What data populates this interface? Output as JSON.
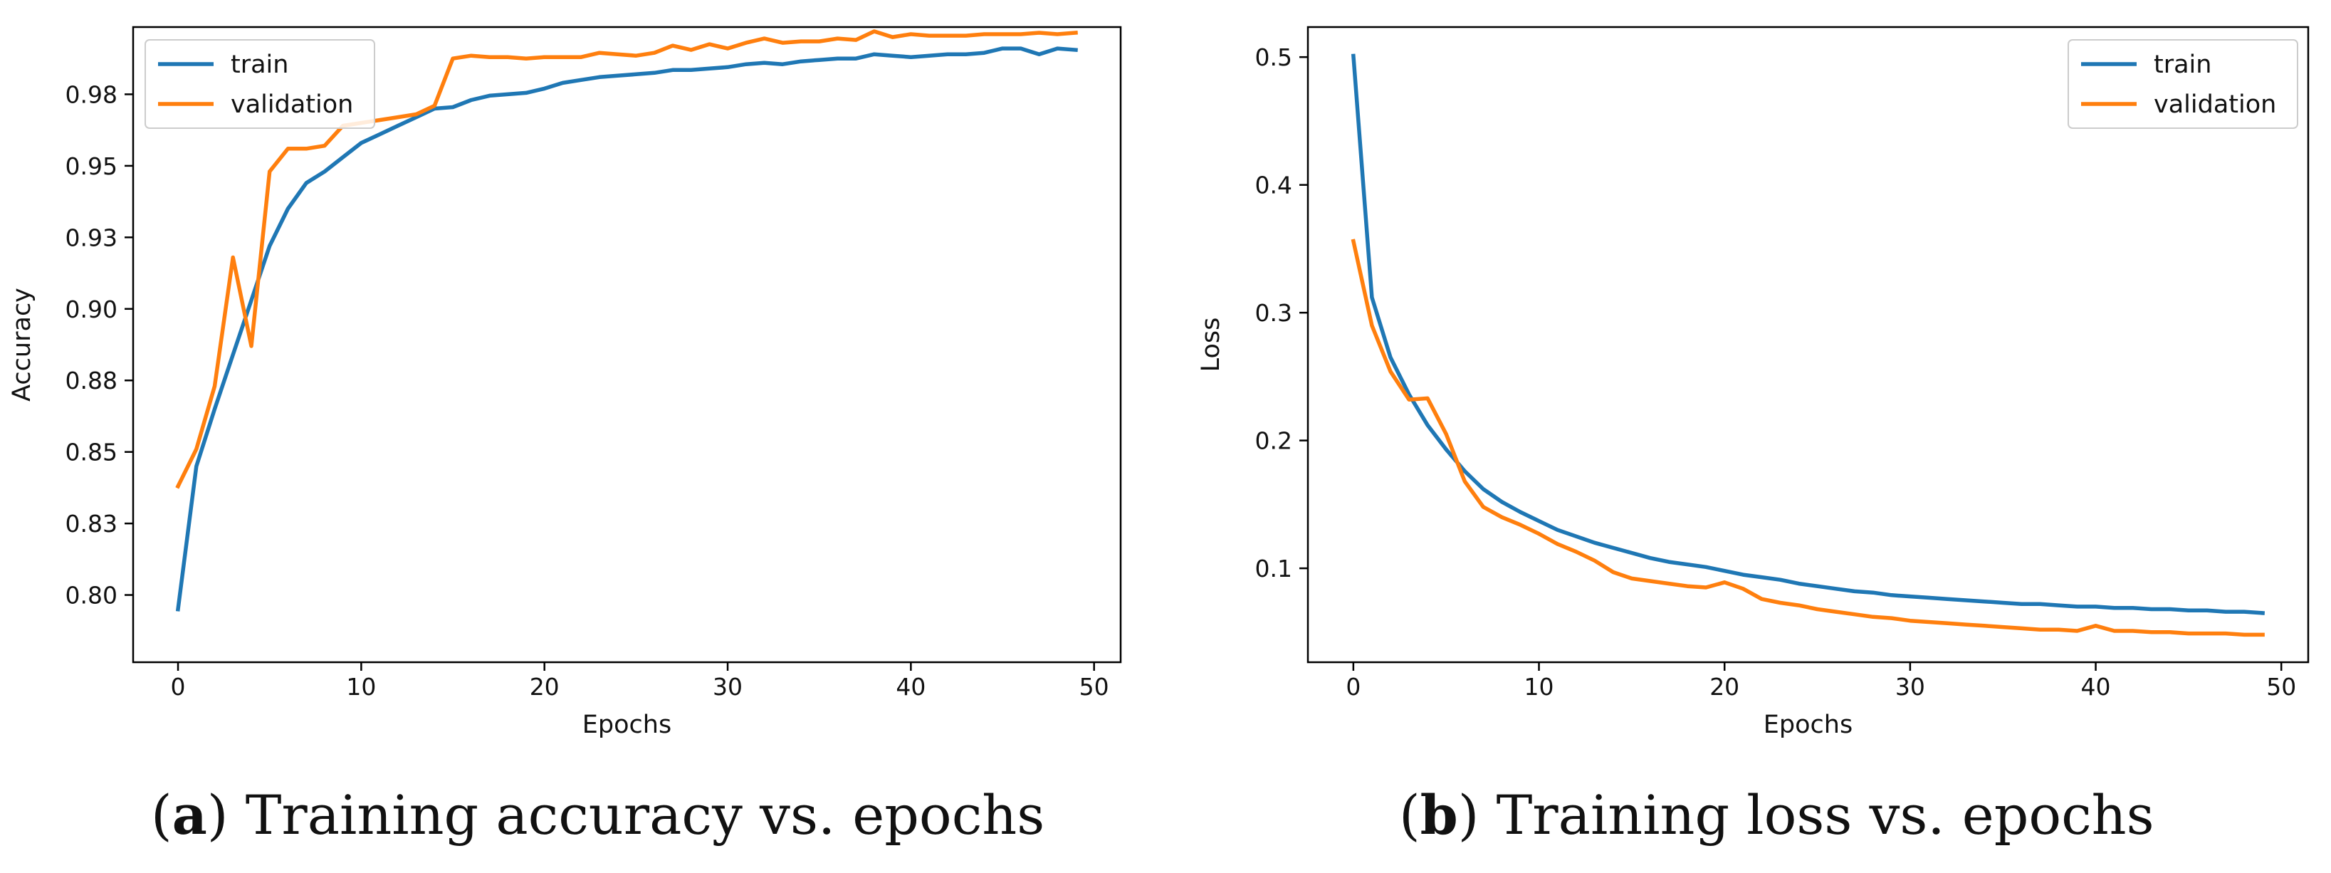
{
  "colors": {
    "train": "#1f77b4",
    "validation": "#ff7f0e"
  },
  "chart_data": [
    {
      "type": "line",
      "caption_letter": "a",
      "caption_text": "Training accuracy vs. epochs",
      "xlabel": "Epochs",
      "ylabel": "Accuracy",
      "xlim": [
        -2.45,
        51.45
      ],
      "ylim": [
        0.7765,
        0.9985
      ],
      "xticks": [
        0,
        10,
        20,
        30,
        40,
        50
      ],
      "yticks": [
        0.8,
        0.825,
        0.85,
        0.875,
        0.9,
        0.925,
        0.95,
        0.975
      ],
      "ytick_labels": [
        "0.80",
        "0.83",
        "0.85",
        "0.88",
        "0.90",
        "0.93",
        "0.95",
        "0.98"
      ],
      "legend": "upper left",
      "series": [
        {
          "name": "train",
          "x": [
            0,
            1,
            2,
            3,
            4,
            5,
            6,
            7,
            8,
            9,
            10,
            11,
            12,
            13,
            14,
            15,
            16,
            17,
            18,
            19,
            20,
            21,
            22,
            23,
            24,
            25,
            26,
            27,
            28,
            29,
            30,
            31,
            32,
            33,
            34,
            35,
            36,
            37,
            38,
            39,
            40,
            41,
            42,
            43,
            44,
            45,
            46,
            47,
            48,
            49
          ],
          "values": [
            0.795,
            0.845,
            0.865,
            0.884,
            0.903,
            0.922,
            0.935,
            0.944,
            0.948,
            0.953,
            0.958,
            0.961,
            0.964,
            0.967,
            0.97,
            0.9705,
            0.973,
            0.9745,
            0.975,
            0.9755,
            0.977,
            0.979,
            0.98,
            0.981,
            0.9815,
            0.982,
            0.9825,
            0.9835,
            0.9835,
            0.984,
            0.9845,
            0.9855,
            0.986,
            0.9855,
            0.9865,
            0.987,
            0.9875,
            0.9875,
            0.989,
            0.9885,
            0.988,
            0.9885,
            0.989,
            0.989,
            0.9895,
            0.991,
            0.991,
            0.989,
            0.991,
            0.9905
          ]
        },
        {
          "name": "validation",
          "x": [
            0,
            1,
            2,
            3,
            4,
            5,
            6,
            7,
            8,
            9,
            10,
            11,
            12,
            13,
            14,
            15,
            16,
            17,
            18,
            19,
            20,
            21,
            22,
            23,
            24,
            25,
            26,
            27,
            28,
            29,
            30,
            31,
            32,
            33,
            34,
            35,
            36,
            37,
            38,
            39,
            40,
            41,
            42,
            43,
            44,
            45,
            46,
            47,
            48,
            49
          ],
          "values": [
            0.838,
            0.851,
            0.873,
            0.918,
            0.887,
            0.948,
            0.956,
            0.956,
            0.957,
            0.964,
            0.965,
            0.966,
            0.967,
            0.968,
            0.971,
            0.9875,
            0.9885,
            0.988,
            0.988,
            0.9875,
            0.988,
            0.988,
            0.988,
            0.9895,
            0.989,
            0.9885,
            0.9895,
            0.992,
            0.9905,
            0.9925,
            0.991,
            0.993,
            0.9945,
            0.993,
            0.9935,
            0.9935,
            0.9945,
            0.994,
            0.997,
            0.995,
            0.996,
            0.9955,
            0.9955,
            0.9955,
            0.996,
            0.996,
            0.996,
            0.9965,
            0.996,
            0.9965
          ]
        }
      ]
    },
    {
      "type": "line",
      "caption_letter": "b",
      "caption_text": "Training loss vs. epochs",
      "xlabel": "Epochs",
      "ylabel": "Loss",
      "xlim": [
        -2.45,
        51.45
      ],
      "ylim": [
        0.0265,
        0.5235
      ],
      "xticks": [
        0,
        10,
        20,
        30,
        40,
        50
      ],
      "yticks": [
        0.1,
        0.2,
        0.3,
        0.4,
        0.5
      ],
      "ytick_labels": [
        "0.1",
        "0.2",
        "0.3",
        "0.4",
        "0.5"
      ],
      "legend": "upper right",
      "series": [
        {
          "name": "train",
          "x": [
            0,
            1,
            2,
            3,
            4,
            5,
            6,
            7,
            8,
            9,
            10,
            11,
            12,
            13,
            14,
            15,
            16,
            17,
            18,
            19,
            20,
            21,
            22,
            23,
            24,
            25,
            26,
            27,
            28,
            29,
            30,
            31,
            32,
            33,
            34,
            35,
            36,
            37,
            38,
            39,
            40,
            41,
            42,
            43,
            44,
            45,
            46,
            47,
            48,
            49
          ],
          "values": [
            0.501,
            0.312,
            0.265,
            0.236,
            0.212,
            0.193,
            0.176,
            0.162,
            0.152,
            0.144,
            0.137,
            0.13,
            0.125,
            0.12,
            0.116,
            0.112,
            0.108,
            0.105,
            0.103,
            0.101,
            0.098,
            0.095,
            0.093,
            0.091,
            0.088,
            0.086,
            0.084,
            0.082,
            0.081,
            0.079,
            0.078,
            0.077,
            0.076,
            0.075,
            0.074,
            0.073,
            0.072,
            0.072,
            0.071,
            0.07,
            0.07,
            0.069,
            0.069,
            0.068,
            0.068,
            0.067,
            0.067,
            0.066,
            0.066,
            0.065
          ]
        },
        {
          "name": "validation",
          "x": [
            0,
            1,
            2,
            3,
            4,
            5,
            6,
            7,
            8,
            9,
            10,
            11,
            12,
            13,
            14,
            15,
            16,
            17,
            18,
            19,
            20,
            21,
            22,
            23,
            24,
            25,
            26,
            27,
            28,
            29,
            30,
            31,
            32,
            33,
            34,
            35,
            36,
            37,
            38,
            39,
            40,
            41,
            42,
            43,
            44,
            45,
            46,
            47,
            48,
            49
          ],
          "values": [
            0.356,
            0.29,
            0.254,
            0.232,
            0.233,
            0.205,
            0.168,
            0.148,
            0.14,
            0.134,
            0.127,
            0.119,
            0.113,
            0.106,
            0.097,
            0.092,
            0.09,
            0.088,
            0.086,
            0.085,
            0.089,
            0.084,
            0.076,
            0.073,
            0.071,
            0.068,
            0.066,
            0.064,
            0.062,
            0.061,
            0.059,
            0.058,
            0.057,
            0.056,
            0.055,
            0.054,
            0.053,
            0.052,
            0.052,
            0.051,
            0.055,
            0.051,
            0.051,
            0.05,
            0.05,
            0.049,
            0.049,
            0.049,
            0.048,
            0.048
          ]
        }
      ]
    }
  ]
}
